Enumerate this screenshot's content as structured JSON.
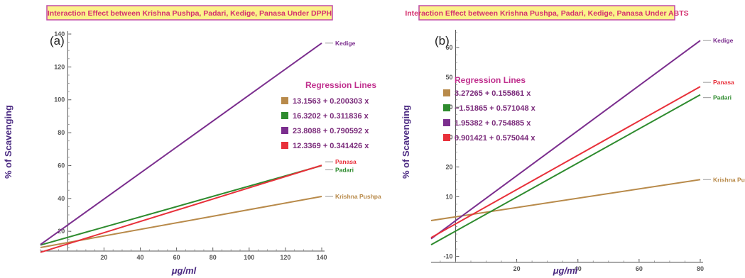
{
  "chart_data": [
    {
      "type": "line",
      "panel": "(a)",
      "title": "Interaction Effect between Krishna Pushpa, Padari, Kedige, Panasa Under DPPH",
      "xlabel": "μg/ml",
      "ylabel": "% of Scavenging",
      "xlim": [
        -15,
        140
      ],
      "ylim": [
        8,
        140
      ],
      "x_ticks": [
        20,
        40,
        60,
        80,
        100,
        120,
        140
      ],
      "y_ticks": [
        20,
        40,
        60,
        80,
        100,
        120,
        140
      ],
      "x_ticks_labels": [
        "20",
        "40",
        "60",
        "80",
        "100",
        "120",
        "140"
      ],
      "y_ticks_labels": [
        "20",
        "40",
        "60",
        "80",
        "100",
        "120",
        "140"
      ],
      "legend_title": "Regression Lines",
      "legend_position": "center-right",
      "grid": false,
      "series": [
        {
          "name": "Krishna Pushpa",
          "color": "#b88a4a",
          "intercept": 13.1563,
          "slope": 0.200303,
          "equation": "13.1563 + 0.200303 x",
          "x_range": [
            -15,
            140
          ]
        },
        {
          "name": "Padari",
          "color": "#2e8b2e",
          "intercept": 16.3202,
          "slope": 0.311836,
          "equation": "16.3202 + 0.311836 x",
          "x_range": [
            -15,
            140
          ]
        },
        {
          "name": "Kedige",
          "color": "#7b2e8e",
          "intercept": 23.8088,
          "slope": 0.790592,
          "equation": "23.8088 + 0.790592 x",
          "x_range": [
            -15,
            140
          ]
        },
        {
          "name": "Panasa",
          "color": "#e8303a",
          "intercept": 12.3369,
          "slope": 0.341426,
          "equation": "12.3369 + 0.341426 x",
          "x_range": [
            -15,
            140
          ]
        }
      ]
    },
    {
      "type": "line",
      "panel": "(b)",
      "title": "Interaction Effect between Krishna Pushpa, Padari, Kedige, Panasa Under ABTS",
      "xlabel": "μg/ml",
      "ylabel": "% of Scavenging",
      "xlim": [
        -8,
        80
      ],
      "ylim": [
        -12,
        65
      ],
      "x_ticks": [
        20,
        40,
        60,
        80
      ],
      "y_ticks": [
        -10,
        10,
        20,
        30,
        40,
        50,
        60
      ],
      "x_ticks_labels": [
        "20",
        "40",
        "60",
        "80"
      ],
      "y_ticks_labels": [
        "-10",
        "10",
        "20",
        "30",
        "40",
        "50",
        "60"
      ],
      "legend_title": "Regression Lines",
      "legend_position": "upper-left",
      "grid": false,
      "series": [
        {
          "name": "Krishna Pushpa",
          "color": "#b88a4a",
          "intercept": 3.27265,
          "slope": 0.155861,
          "equation": "3.27265 + 0.155861 x",
          "x_range": [
            -8,
            80
          ]
        },
        {
          "name": "Padari",
          "color": "#2e8b2e",
          "intercept": -1.51865,
          "slope": 0.571048,
          "equation": "−1.51865 + 0.571048 x",
          "x_range": [
            -8,
            80
          ]
        },
        {
          "name": "Kedige",
          "color": "#7b2e8e",
          "intercept": 1.95382,
          "slope": 0.754885,
          "equation": "1.95382 + 0.754885 x",
          "x_range": [
            -8,
            80
          ]
        },
        {
          "name": "Panasa",
          "color": "#e8303a",
          "intercept": 0.901421,
          "slope": 0.575044,
          "equation": "0.901421 + 0.575044 x",
          "x_range": [
            -8,
            80
          ]
        }
      ]
    }
  ]
}
